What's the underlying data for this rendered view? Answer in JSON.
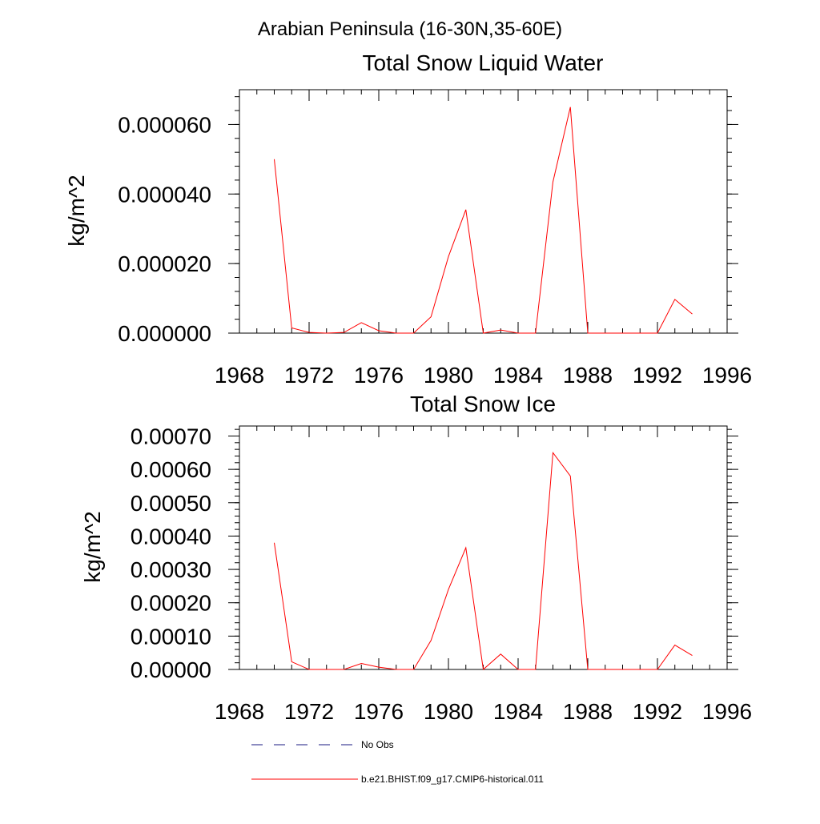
{
  "figure": {
    "title": "Arabian Peninsula (16-30N,35-60E)"
  },
  "colors": {
    "model": "#ff0000",
    "obs": "#1a1a80",
    "axes": "#000000"
  },
  "legend": {
    "placement": "bottom",
    "items": [
      {
        "label": "No Obs",
        "style": "dashed",
        "color": "#1a1a80"
      },
      {
        "label": "b.e21.BHIST.f09_g17.CMIP6-historical.011",
        "style": "solid",
        "color": "#ff0000"
      }
    ]
  },
  "chart_data": [
    {
      "type": "line",
      "title": "Total Snow Liquid Water",
      "xlabel": "",
      "ylabel": "kg/m^2",
      "xlim": [
        1968,
        1996
      ],
      "ylim": [
        0,
        7e-05
      ],
      "x_ticks": [
        "1968",
        "1972",
        "1976",
        "1980",
        "1984",
        "1988",
        "1992",
        "1996"
      ],
      "y_ticks": [
        {
          "value": 0,
          "label": "0.000000"
        },
        {
          "value": 2e-05,
          "label": "0.000020"
        },
        {
          "value": 4e-05,
          "label": "0.000040"
        },
        {
          "value": 6e-05,
          "label": "0.000060"
        }
      ],
      "x": [
        1970,
        1971,
        1972,
        1973,
        1974,
        1975,
        1976,
        1977,
        1978,
        1979,
        1980,
        1981,
        1982,
        1983,
        1984,
        1985,
        1986,
        1987,
        1988,
        1989,
        1990,
        1991,
        1992,
        1993,
        1994
      ],
      "series": [
        {
          "name": "b.e21.BHIST.f09_g17.CMIP6-historical.011",
          "values": [
            5e-05,
            1.5e-06,
            2e-07,
            0.0,
            2e-07,
            3e-06,
            7e-07,
            0.0,
            0.0,
            4.7e-06,
            2.2e-05,
            3.55e-05,
            0.0,
            9e-07,
            0.0,
            0.0,
            4.35e-05,
            6.5e-05,
            0.0,
            0.0,
            0.0,
            0.0,
            0.0,
            9.7e-06,
            5.5e-06
          ]
        }
      ]
    },
    {
      "type": "line",
      "title": "Total Snow Ice",
      "xlabel": "",
      "ylabel": "kg/m^2",
      "xlim": [
        1968,
        1996
      ],
      "ylim": [
        0,
        0.00073
      ],
      "x_ticks": [
        "1968",
        "1972",
        "1976",
        "1980",
        "1984",
        "1988",
        "1992",
        "1996"
      ],
      "y_ticks": [
        {
          "value": 0,
          "label": "0.00000"
        },
        {
          "value": 0.0001,
          "label": "0.00010"
        },
        {
          "value": 0.0002,
          "label": "0.00020"
        },
        {
          "value": 0.0003,
          "label": "0.00030"
        },
        {
          "value": 0.0004,
          "label": "0.00040"
        },
        {
          "value": 0.0005,
          "label": "0.00050"
        },
        {
          "value": 0.0006,
          "label": "0.00060"
        },
        {
          "value": 0.0007,
          "label": "0.00070"
        }
      ],
      "x": [
        1970,
        1971,
        1972,
        1973,
        1974,
        1975,
        1976,
        1977,
        1978,
        1979,
        1980,
        1981,
        1982,
        1983,
        1984,
        1985,
        1986,
        1987,
        1988,
        1989,
        1990,
        1991,
        1992,
        1993,
        1994
      ],
      "series": [
        {
          "name": "b.e21.BHIST.f09_g17.CMIP6-historical.011",
          "values": [
            0.00038,
            2.3e-05,
            0.0,
            0.0,
            0.0,
            1.8e-05,
            7e-06,
            0.0,
            0.0,
            8.7e-05,
            0.00024,
            0.000365,
            0.0,
            4.6e-05,
            0.0,
            0.0,
            0.00065,
            0.00058,
            0.0,
            0.0,
            0.0,
            0.0,
            0.0,
            7.3e-05,
            4.2e-05
          ]
        }
      ]
    }
  ]
}
